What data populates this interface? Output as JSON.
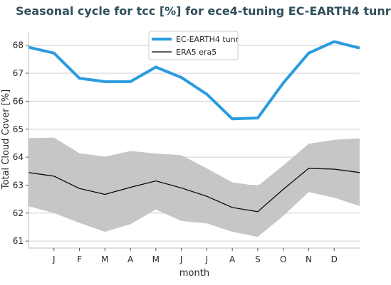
{
  "chart_data": {
    "type": "line",
    "title": "Seasonal cycle for tcc [%] for ece4-tuning EC-EARTH4 tunr",
    "xlabel": "month",
    "ylabel": "Total Cloud Cover [%]",
    "categories": [
      "J",
      "F",
      "M",
      "A",
      "M",
      "J",
      "J",
      "A",
      "S",
      "O",
      "N",
      "D"
    ],
    "x": [
      0,
      1,
      2,
      3,
      4,
      5,
      6,
      7,
      8,
      9,
      10,
      11,
      12,
      13
    ],
    "xlim": [
      0,
      13
    ],
    "ylim": [
      60.75,
      68.45
    ],
    "yticks": [
      61,
      62,
      63,
      64,
      65,
      66,
      67,
      68
    ],
    "grid": true,
    "legend_position": "top-center",
    "series": [
      {
        "name": "EC-EARTH4 tunr",
        "color": "#2b9be0",
        "values": [
          67.93,
          67.72,
          66.82,
          66.7,
          66.7,
          67.22,
          66.85,
          66.25,
          65.37,
          65.4,
          66.65,
          67.72,
          68.13,
          67.9
        ]
      },
      {
        "name": "ERA5 era5",
        "color": "#000000",
        "values": [
          63.45,
          63.32,
          62.88,
          62.67,
          62.92,
          63.15,
          62.9,
          62.6,
          62.2,
          62.05,
          62.85,
          63.6,
          63.57,
          63.45
        ]
      }
    ],
    "band": {
      "color": "#c6c6c6",
      "upper": [
        64.68,
        64.7,
        64.14,
        64.02,
        64.22,
        64.13,
        64.07,
        63.6,
        63.1,
        62.97,
        63.7,
        64.48,
        64.62,
        64.67
      ],
      "lower": [
        62.25,
        62.0,
        61.65,
        61.33,
        61.6,
        62.13,
        61.72,
        61.63,
        61.33,
        61.15,
        61.9,
        62.75,
        62.55,
        62.25
      ]
    }
  }
}
